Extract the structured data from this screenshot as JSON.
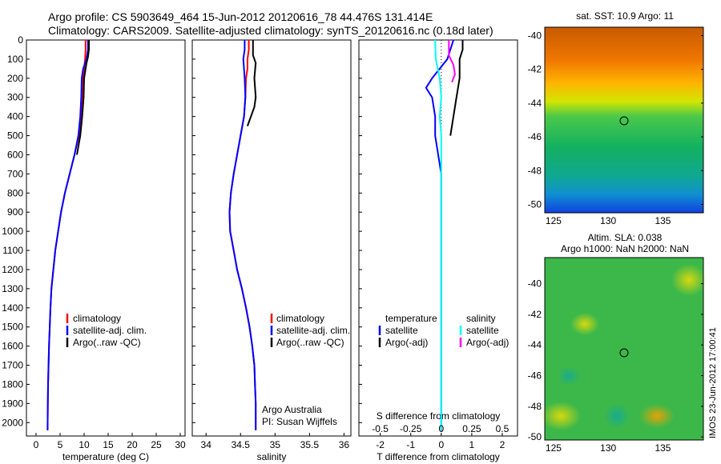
{
  "figure": {
    "title_line1": "Argo profile: CS 5903649_464 15-Jun-2012 20120616_78 44.476S 131.414E",
    "title_line2": "Climatology: CARS2009. Satellite-adjusted climatology: synTS_20120616.nc (0.18d later)",
    "stamp": "IMOS 23-Jun-2012 17:00:41",
    "credit_line1": "Argo Australia",
    "credit_line2": "PI: Susan Wijffels"
  },
  "colors": {
    "climatology": "#ff0000",
    "satellite": "#0000ff",
    "argo": "#000000",
    "satellite_salinity": "#00ffff",
    "argo_salinity": "#ff00ff"
  },
  "legend_profiles": [
    "climatology",
    "satellite-adj. clim.",
    "Argo(..raw -QC)"
  ],
  "legend_diff": {
    "temperature_header": "temperature",
    "salinity_header": "salinity",
    "t_satellite": "satellite",
    "t_argo": "Argo(-adj)",
    "s_satellite": "satellite",
    "s_argo": "Argo(-adj)"
  },
  "chart_data": [
    {
      "type": "line",
      "panel": "temperature",
      "xlabel": "temperature (deg C)",
      "ylabel": "",
      "xlim": [
        -2,
        31
      ],
      "ylim": [
        2070,
        0
      ],
      "xticks": [
        0,
        5,
        10,
        15,
        20,
        25,
        30
      ],
      "yticks": [
        0,
        100,
        200,
        300,
        400,
        500,
        600,
        700,
        800,
        900,
        1000,
        1100,
        1200,
        1300,
        1400,
        1500,
        1600,
        1700,
        1800,
        1900,
        2000
      ],
      "series": [
        {
          "name": "climatology",
          "x": [
            10.3,
            10.3,
            10.2,
            10.0,
            9.8,
            9.6,
            9.3,
            8.9,
            8.0,
            7.0,
            6.0,
            5.2,
            4.6,
            4.0,
            3.6,
            3.2,
            3.0,
            2.85,
            2.7,
            2.6,
            2.5,
            2.45,
            2.4
          ],
          "y": [
            0,
            50,
            100,
            150,
            200,
            300,
            400,
            500,
            600,
            700,
            800,
            900,
            1000,
            1100,
            1200,
            1300,
            1400,
            1500,
            1600,
            1700,
            1800,
            1900,
            2040
          ]
        },
        {
          "name": "satellite-adj. clim.",
          "x": [
            10.8,
            10.8,
            10.5,
            9.8,
            9.5,
            9.4,
            9.2,
            8.8,
            8.0,
            7.0,
            6.0,
            5.2,
            4.6,
            4.0,
            3.6,
            3.2,
            3.0,
            2.85,
            2.7,
            2.6,
            2.5,
            2.45,
            2.4
          ],
          "y": [
            0,
            50,
            100,
            150,
            200,
            300,
            400,
            500,
            600,
            700,
            800,
            900,
            1000,
            1100,
            1200,
            1300,
            1400,
            1500,
            1600,
            1700,
            1800,
            1900,
            2040
          ]
        },
        {
          "name": "Argo(..raw -QC)",
          "x": [
            11.0,
            11.0,
            10.8,
            10.5,
            10.0,
            9.9,
            9.6,
            9.2,
            8.5
          ],
          "y": [
            0,
            50,
            90,
            120,
            200,
            300,
            400,
            500,
            600
          ]
        }
      ]
    },
    {
      "type": "line",
      "panel": "salinity",
      "xlabel": "salinity",
      "ylabel": "",
      "xlim": [
        33.8,
        36.1
      ],
      "ylim": [
        2070,
        0
      ],
      "xticks": [
        34,
        34.5,
        35,
        35.5,
        36
      ],
      "series": [
        {
          "name": "climatology",
          "x": [
            34.62,
            34.62,
            34.6,
            34.6,
            34.58,
            34.57,
            34.55,
            34.5,
            34.45,
            34.4,
            34.36,
            34.34,
            34.35,
            34.4,
            34.45,
            34.52,
            34.58,
            34.63,
            34.67,
            34.7,
            34.71,
            34.72,
            34.72
          ],
          "y": [
            0,
            50,
            100,
            150,
            200,
            300,
            400,
            500,
            600,
            700,
            800,
            900,
            1000,
            1100,
            1200,
            1300,
            1400,
            1500,
            1600,
            1700,
            1800,
            1900,
            2040
          ]
        },
        {
          "name": "satellite-adj. clim.",
          "x": [
            34.56,
            34.56,
            34.54,
            34.55,
            34.56,
            34.57,
            34.55,
            34.5,
            34.45,
            34.4,
            34.36,
            34.34,
            34.35,
            34.4,
            34.45,
            34.52,
            34.58,
            34.63,
            34.67,
            34.7,
            34.71,
            34.72,
            34.72
          ],
          "y": [
            0,
            50,
            100,
            150,
            200,
            300,
            400,
            500,
            600,
            700,
            800,
            900,
            1000,
            1100,
            1200,
            1300,
            1400,
            1500,
            1600,
            1700,
            1800,
            1900,
            2040
          ]
        },
        {
          "name": "Argo(..raw -QC)",
          "x": [
            34.68,
            34.68,
            34.72,
            34.7,
            34.72,
            34.7,
            34.65,
            34.6
          ],
          "y": [
            0,
            80,
            120,
            200,
            300,
            350,
            400,
            450
          ]
        }
      ]
    },
    {
      "type": "line",
      "panel": "difference",
      "xlabel": "T difference from climatology",
      "xlabel2": "S difference from climatology",
      "xlim": [
        -2.7,
        2.5
      ],
      "ylim": [
        2070,
        0
      ],
      "xticks": [
        -2,
        -1,
        0,
        1,
        2
      ],
      "xticks_S": [
        -0.5,
        -0.25,
        0,
        0.25,
        0.5
      ],
      "series": [
        {
          "name": "temperature satellite",
          "x": [
            0.4,
            0.2,
            -0.3,
            -0.5,
            -0.3,
            -0.2,
            -0.2,
            -0.1,
            0.0,
            0.0,
            0.0,
            0.0,
            0.0,
            0.0,
            0.0,
            0.0
          ],
          "y": [
            0,
            100,
            200,
            250,
            300,
            400,
            500,
            600,
            700,
            800,
            1000,
            1200,
            1400,
            1600,
            1800,
            2040
          ]
        },
        {
          "name": "temperature Argo(-adj)",
          "x": [
            0.7,
            0.7,
            0.6,
            0.6,
            0.5,
            0.4,
            0.3
          ],
          "y": [
            0,
            50,
            100,
            200,
            300,
            400,
            500
          ]
        },
        {
          "name": "salinity satellite",
          "x": [
            -0.2,
            -0.18,
            -0.05,
            0.0,
            -0.05,
            0.0,
            0.0,
            0.0,
            0.0,
            0.0,
            0.0
          ],
          "y": [
            0,
            100,
            200,
            300,
            400,
            500,
            700,
            1000,
            1400,
            1800,
            2040
          ]
        },
        {
          "name": "salinity Argo(-adj)",
          "x": [
            0.25,
            0.25,
            0.4,
            0.45,
            0.35
          ],
          "y": [
            0,
            80,
            130,
            180,
            220
          ]
        }
      ]
    }
  ],
  "maps": {
    "sst": {
      "title": "sat. SST: 10.9 Argo: 11",
      "xticks": [
        125,
        130,
        135
      ],
      "yticks": [
        -40,
        -42,
        -44,
        -46,
        -48,
        -50
      ],
      "marker": "44.476S 131.414E"
    },
    "sla": {
      "title_line1": "Altim. SLA: 0.038",
      "title_line2": "Argo h1000: NaN h2000: NaN",
      "xticks": [
        125,
        130,
        135
      ],
      "yticks": [
        -40,
        -42,
        -44,
        -46,
        -48,
        -50
      ]
    }
  }
}
